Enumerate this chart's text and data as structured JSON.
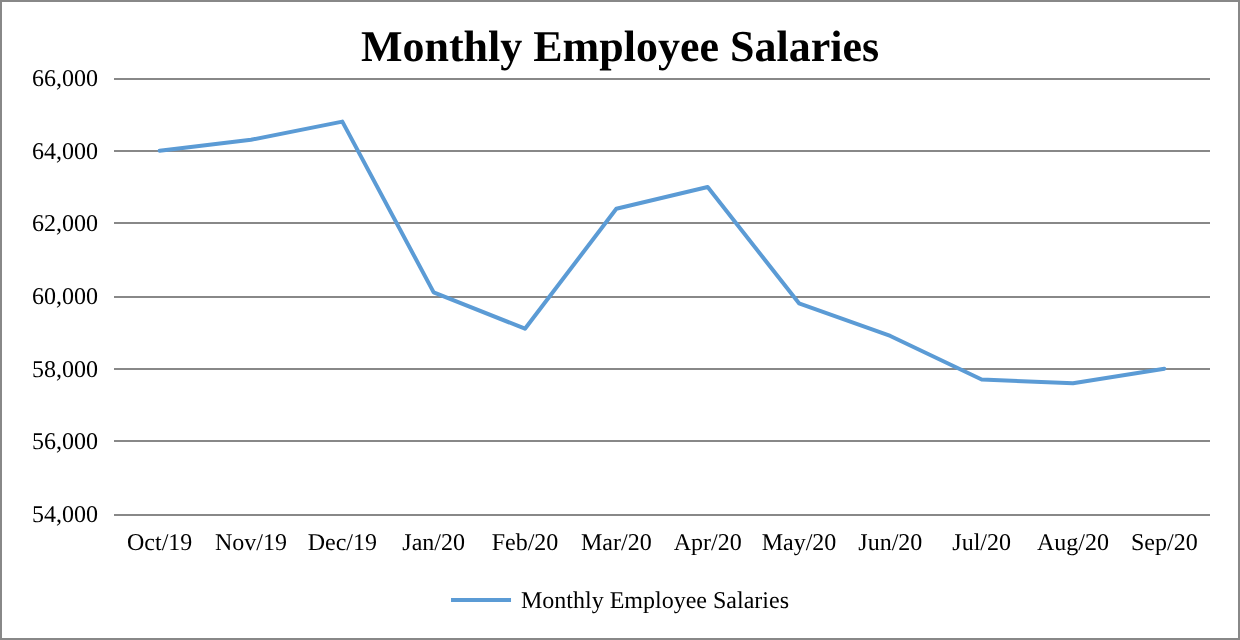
{
  "chart_data": {
    "type": "line",
    "title": "Monthly Employee Salaries",
    "categories": [
      "Oct/19",
      "Nov/19",
      "Dec/19",
      "Jan/20",
      "Feb/20",
      "Mar/20",
      "Apr/20",
      "May/20",
      "Jun/20",
      "Jul/20",
      "Aug/20",
      "Sep/20"
    ],
    "series": [
      {
        "name": "Monthly Employee Salaries",
        "color": "#5b9bd5",
        "values": [
          64000,
          64300,
          64800,
          60100,
          59100,
          62400,
          63000,
          59800,
          58900,
          57700,
          57600,
          58000
        ]
      }
    ],
    "ylim": [
      54000,
      66000
    ],
    "yticks": [
      {
        "value": 54000,
        "label": "54,000"
      },
      {
        "value": 56000,
        "label": "56,000"
      },
      {
        "value": 58000,
        "label": "58,000"
      },
      {
        "value": 60000,
        "label": "60,000"
      },
      {
        "value": 62000,
        "label": "62,000"
      },
      {
        "value": 64000,
        "label": "64,000"
      },
      {
        "value": 66000,
        "label": "66,000"
      }
    ],
    "grid": "y",
    "legend": "bottom",
    "marker": "none",
    "line_style": "solid"
  }
}
